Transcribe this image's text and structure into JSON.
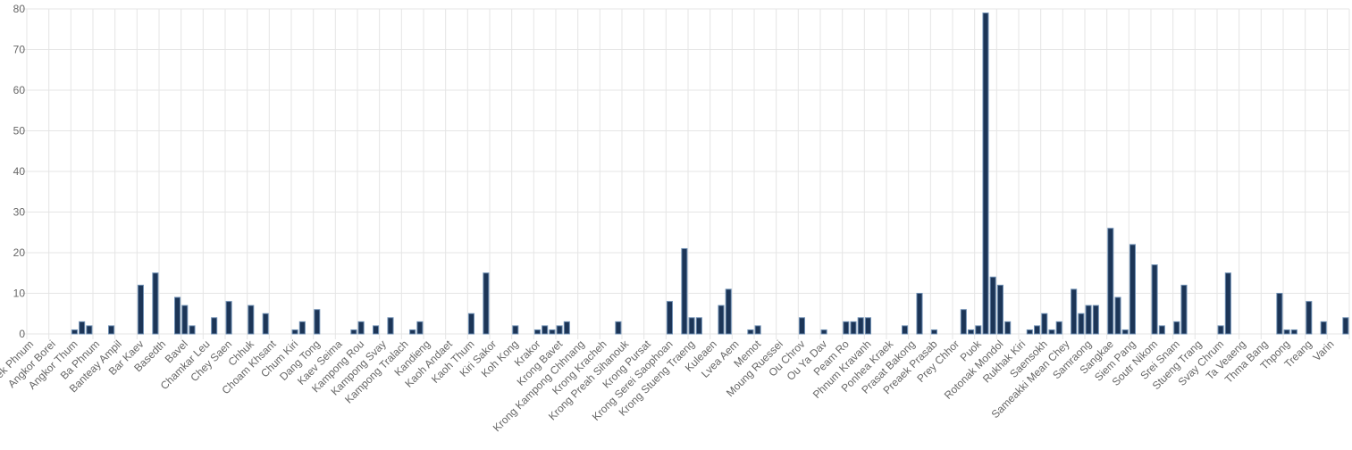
{
  "chart_data": {
    "type": "bar",
    "categories": [
      "Aek Phnum",
      null,
      null,
      "Angkor Borei",
      null,
      null,
      "Angkor Thum",
      null,
      null,
      "Ba Phnum",
      null,
      null,
      "Banteay Ampil",
      null,
      null,
      "Bar Kaev",
      null,
      null,
      "Basedth",
      null,
      null,
      "Bavel",
      null,
      null,
      "Chamkar Leu",
      null,
      null,
      "Chey Saen",
      null,
      null,
      "Chhuk",
      null,
      null,
      "Choam Khsant",
      null,
      null,
      "Chum Kiri",
      null,
      null,
      "Dang Tong",
      null,
      null,
      "Kaev Seima",
      null,
      null,
      "Kampong Rou",
      null,
      null,
      "Kampong Svay",
      null,
      null,
      "Kampong Tralach",
      null,
      null,
      "Kandieng",
      null,
      null,
      "Kaoh Andaet",
      null,
      null,
      "Kaoh Thum",
      null,
      null,
      "Kiri Sakor",
      null,
      null,
      "Koh Kong",
      null,
      null,
      "Krakor",
      null,
      null,
      "Krong Bavet",
      null,
      null,
      "Krong Kampong Chhnang",
      null,
      null,
      "Krong Kracheh",
      null,
      null,
      "Krong Preah Sihanouk",
      null,
      null,
      "Krong Pursat",
      null,
      null,
      "Krong Serei Saophoan",
      null,
      null,
      "Krong Stueng Traeng",
      null,
      null,
      "Kuleaen",
      null,
      null,
      "Lvea Aem",
      null,
      null,
      "Memot",
      null,
      null,
      "Moung Ruessei",
      null,
      null,
      "Ou Chrov",
      null,
      null,
      "Ou Ya Dav",
      null,
      null,
      "Peam Ro",
      null,
      null,
      "Phnum Kravanh",
      null,
      null,
      "Ponhea Kraek",
      null,
      null,
      "Prasat Bakong",
      null,
      null,
      "Preaek Prasab",
      null,
      null,
      "Prey Chhor",
      null,
      null,
      "Puok",
      null,
      null,
      "Rotonak Mondol",
      null,
      null,
      "Rukhak Kiri",
      null,
      null,
      "Saensokh",
      null,
      null,
      "Sameakki Mean Chey",
      null,
      null,
      "Samraong",
      null,
      null,
      "Sangkae",
      null,
      null,
      "Siem Pang",
      null,
      null,
      "Soutr Nikom",
      null,
      null,
      "Srei Snam",
      null,
      null,
      "Stueng Trang",
      null,
      null,
      "Svay Chrum",
      null,
      null,
      "Ta Veaeng",
      null,
      null,
      "Thma Bang",
      null,
      null,
      "Thpong",
      null,
      null,
      "Treang",
      null,
      null,
      "Varin",
      null,
      null
    ],
    "values": [
      0,
      0,
      0,
      0,
      0,
      0,
      1,
      3,
      2,
      0,
      0,
      2,
      0,
      0,
      0,
      12,
      0,
      15,
      0,
      0,
      9,
      7,
      2,
      0,
      0,
      4,
      0,
      8,
      0,
      0,
      7,
      0,
      5,
      0,
      0,
      0,
      1,
      3,
      0,
      6,
      0,
      0,
      0,
      0,
      1,
      3,
      0,
      2,
      0,
      4,
      0,
      0,
      1,
      3,
      0,
      0,
      0,
      0,
      0,
      0,
      5,
      0,
      15,
      0,
      0,
      0,
      2,
      0,
      0,
      1,
      2,
      1,
      2,
      3,
      0,
      0,
      0,
      0,
      0,
      0,
      3,
      0,
      0,
      0,
      0,
      0,
      0,
      8,
      0,
      21,
      4,
      4,
      0,
      0,
      7,
      11,
      0,
      0,
      1,
      2,
      0,
      0,
      0,
      0,
      0,
      4,
      0,
      0,
      1,
      0,
      0,
      3,
      3,
      4,
      4,
      0,
      0,
      0,
      0,
      2,
      0,
      10,
      0,
      1,
      0,
      0,
      0,
      6,
      1,
      2,
      79,
      14,
      12,
      3,
      0,
      0,
      1,
      2,
      5,
      1,
      3,
      0,
      11,
      5,
      7,
      7,
      0,
      26,
      9,
      1,
      22,
      0,
      0,
      17,
      2,
      0,
      3,
      12,
      0,
      0,
      0,
      0,
      2,
      15,
      0,
      0,
      0,
      0,
      0,
      0,
      10,
      1,
      1,
      0,
      8,
      0,
      3,
      0,
      0,
      4
    ],
    "color": "#1c3557",
    "ylim": [
      0,
      80
    ],
    "yticks": [
      0,
      10,
      20,
      30,
      40,
      50,
      60,
      70,
      80
    ],
    "grid": true
  }
}
